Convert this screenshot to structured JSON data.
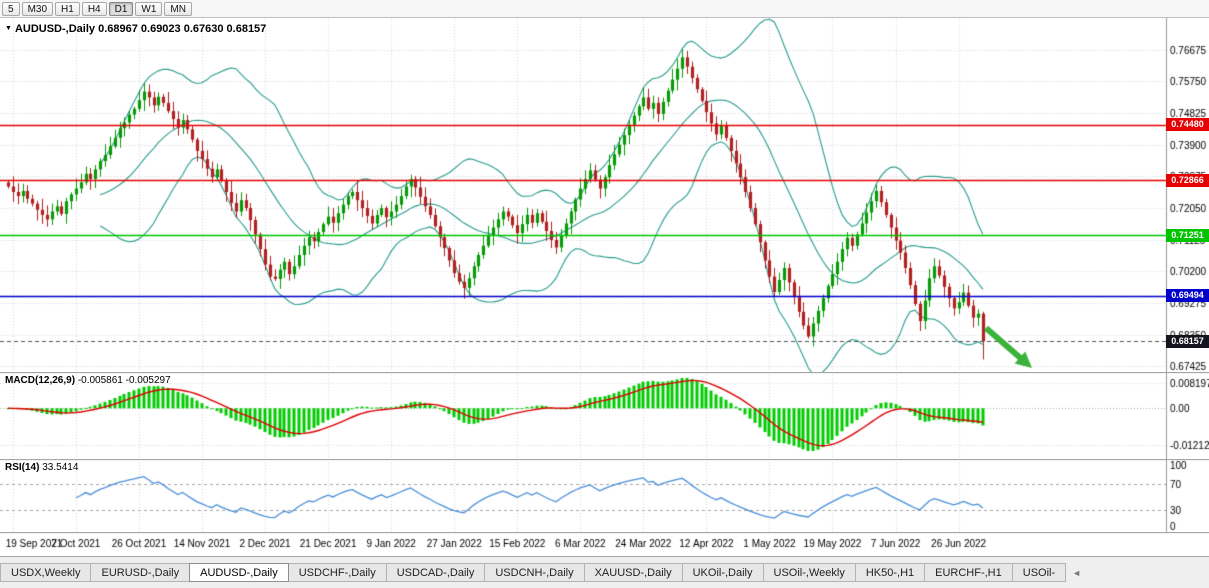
{
  "toolbar": {
    "buttons": [
      "5",
      "M30",
      "H1",
      "H4",
      "D1",
      "W1",
      "MN"
    ],
    "active": "D1"
  },
  "chart_data": {
    "type": "candlestick",
    "symbol_title": "AUDUSD-,Daily",
    "ohlc_text": "0.68967 0.69023 0.67630 0.68157",
    "last_candle": {
      "open": 0.68967,
      "high": 0.69023,
      "low": 0.6763,
      "close": 0.68157
    },
    "x_labels": [
      "19 Sep 2021",
      "7 Oct 2021",
      "26 Oct 2021",
      "14 Nov 2021",
      "2 Dec 2021",
      "21 Dec 2021",
      "9 Jan 2022",
      "27 Jan 2022",
      "15 Feb 2022",
      "6 Mar 2022",
      "24 Mar 2022",
      "12 Apr 2022",
      "1 May 2022",
      "19 May 2022",
      "7 Jun 2022",
      "26 Jun 2022"
    ],
    "bars_per_label": 13,
    "first_label_index": 1,
    "closes": [
      0.7268,
      0.7252,
      0.724,
      0.7255,
      0.7232,
      0.7218,
      0.72,
      0.7185,
      0.7172,
      0.7195,
      0.721,
      0.7188,
      0.7225,
      0.7245,
      0.7262,
      0.728,
      0.7305,
      0.729,
      0.7318,
      0.7342,
      0.736,
      0.7385,
      0.741,
      0.7438,
      0.7455,
      0.7478,
      0.7495,
      0.752,
      0.7545,
      0.7528,
      0.7505,
      0.753,
      0.7512,
      0.7488,
      0.7465,
      0.744,
      0.7462,
      0.7435,
      0.7405,
      0.7372,
      0.7348,
      0.732,
      0.7295,
      0.7318,
      0.7285,
      0.7252,
      0.722,
      0.7195,
      0.7228,
      0.7205,
      0.717,
      0.7128,
      0.7085,
      0.704,
      0.7005,
      0.6998,
      0.7025,
      0.7048,
      0.7012,
      0.7035,
      0.7068,
      0.7095,
      0.712,
      0.7108,
      0.7135,
      0.7158,
      0.718,
      0.7162,
      0.719,
      0.7215,
      0.724,
      0.7252,
      0.7228,
      0.7205,
      0.7182,
      0.716,
      0.7185,
      0.7205,
      0.7178,
      0.7195,
      0.7215,
      0.724,
      0.7268,
      0.729,
      0.7265,
      0.7238,
      0.721,
      0.7185,
      0.7152,
      0.712,
      0.7088,
      0.7052,
      0.7015,
      0.699,
      0.6972,
      0.7,
      0.7035,
      0.7068,
      0.7095,
      0.7125,
      0.7148,
      0.7172,
      0.7195,
      0.718,
      0.7155,
      0.7132,
      0.7158,
      0.7185,
      0.7162,
      0.719,
      0.7165,
      0.7138,
      0.7112,
      0.709,
      0.7125,
      0.716,
      0.7195,
      0.723,
      0.7262,
      0.729,
      0.7315,
      0.7288,
      0.7262,
      0.7295,
      0.733,
      0.7362,
      0.739,
      0.7418,
      0.7448,
      0.7475,
      0.7502,
      0.7528,
      0.7495,
      0.7512,
      0.748,
      0.7515,
      0.7548,
      0.758,
      0.7612,
      0.7645,
      0.7618,
      0.7585,
      0.7552,
      0.7518,
      0.7485,
      0.7452,
      0.742,
      0.7445,
      0.741,
      0.7372,
      0.7335,
      0.7295,
      0.7252,
      0.7205,
      0.7158,
      0.7105,
      0.7052,
      0.7005,
      0.696,
      0.6995,
      0.703,
      0.6988,
      0.6945,
      0.6902,
      0.6862,
      0.683,
      0.6868,
      0.6905,
      0.6942,
      0.6978,
      0.7012,
      0.7048,
      0.7085,
      0.7118,
      0.7095,
      0.7128,
      0.716,
      0.7192,
      0.7225,
      0.7255,
      0.7222,
      0.7185,
      0.7148,
      0.711,
      0.7075,
      0.703,
      0.698,
      0.6925,
      0.6875,
      0.6935,
      0.7,
      0.7035,
      0.7008,
      0.6975,
      0.6942,
      0.6912,
      0.693,
      0.6958,
      0.692,
      0.6885,
      0.68967,
      0.68157
    ],
    "price_scale_labels": [
      "0.76675",
      "0.75750",
      "0.74825",
      "0.73900",
      "0.72975",
      "0.72050",
      "0.71125",
      "0.70200",
      "0.69275",
      "0.68350",
      "0.67425"
    ],
    "hlines": [
      {
        "value": 0.7448,
        "label": "0.74480",
        "color": "#e60000"
      },
      {
        "value": 0.72866,
        "label": "0.72866",
        "color": "#e60000"
      },
      {
        "value": 0.71251,
        "label": "0.71251",
        "color": "#00c400"
      },
      {
        "value": 0.69494,
        "label": "0.69494",
        "color": "#0000cd"
      },
      {
        "value": 0.68157,
        "label": "0.68157",
        "color": "#14141e",
        "is_price": true
      }
    ],
    "bollinger": {
      "period": 20,
      "deviation": 2,
      "color": "#2a9d8f"
    },
    "macd": {
      "label": "MACD(12,26,9)",
      "values_text": "-0.005861 -0.005297",
      "fast": 12,
      "slow": 26,
      "signal": 9,
      "scale_labels": [
        "0.008197",
        "0.00",
        "-0.01212"
      ],
      "scale_values": [
        0.008197,
        0,
        -0.01212
      ],
      "hist_color": "#00cc00",
      "signal_color": "#dd0000"
    },
    "rsi": {
      "label": "RSI(14)",
      "value_text": "33.5414",
      "period": 14,
      "levels": [
        100,
        70,
        30,
        0
      ],
      "line_color": "#4a90d9"
    },
    "arrow": {
      "color": "#3bb33b"
    },
    "colors": {
      "up": "#089a08",
      "down": "#b22222",
      "grid": "#d8d8d8",
      "bg": "#ffffff",
      "separator": "#9a9a9a"
    }
  },
  "tabs": {
    "items": [
      "USDX,Weekly",
      "EURUSD-,Daily",
      "AUDUSD-,Daily",
      "USDCHF-,Daily",
      "USDCAD-,Daily",
      "USDCNH-,Daily",
      "XAUUSD-,Daily",
      "UKOil-,Daily",
      "USOil-,Weekly",
      "HK50-,H1",
      "EURCHF-,H1",
      "USOil-"
    ],
    "active_index": 2
  }
}
